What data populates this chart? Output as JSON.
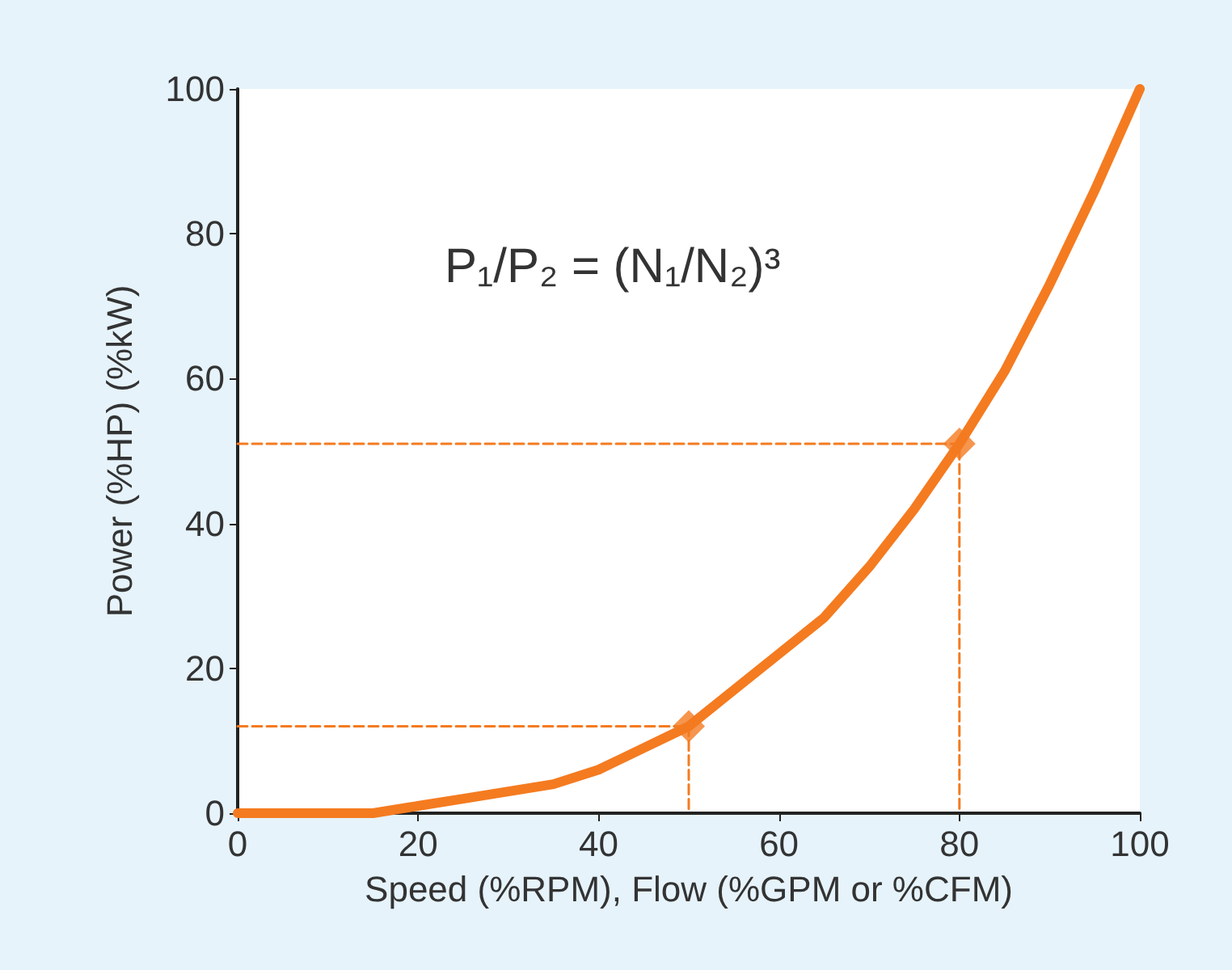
{
  "chart_data": {
    "type": "line",
    "xlabel": "Speed (%RPM), Flow (%GPM or %CFM)",
    "ylabel": "Power (%HP) (%kW)",
    "annotations": [
      "P₁/P₂ = (N₁/N₂)³"
    ],
    "x": [
      0,
      5,
      10,
      15,
      20,
      25,
      30,
      35,
      40,
      45,
      50,
      55,
      60,
      65,
      70,
      75,
      80,
      85,
      90,
      95,
      100
    ],
    "xlim": [
      0,
      100
    ],
    "ylim": [
      0,
      100
    ],
    "xticks": [
      0,
      20,
      40,
      60,
      80,
      100
    ],
    "yticks": [
      0,
      20,
      40,
      60,
      80,
      100
    ],
    "grid": false,
    "series": [
      {
        "color": "#f47b20",
        "values": [
          0,
          0,
          0,
          0,
          1,
          2,
          3,
          4,
          6,
          9,
          12,
          17,
          22,
          27,
          34,
          42,
          51,
          61,
          73,
          86,
          100
        ],
        "marker": "none",
        "line_style": "solid"
      },
      {
        "type": "line",
        "color": "#f47b20",
        "x": [
          0,
          50,
          50
        ],
        "values": [
          12,
          12,
          0
        ],
        "marker": "none",
        "line_style": "dashed"
      },
      {
        "type": "line",
        "color": "#f47b20",
        "x": [
          0,
          80,
          80
        ],
        "values": [
          51,
          51,
          0
        ],
        "marker": "none",
        "line_style": "dashed"
      },
      {
        "type": "scatter",
        "color": "#f47b20",
        "x": [
          50,
          80
        ],
        "values": [
          12,
          51
        ],
        "marker": "diamond"
      }
    ]
  }
}
